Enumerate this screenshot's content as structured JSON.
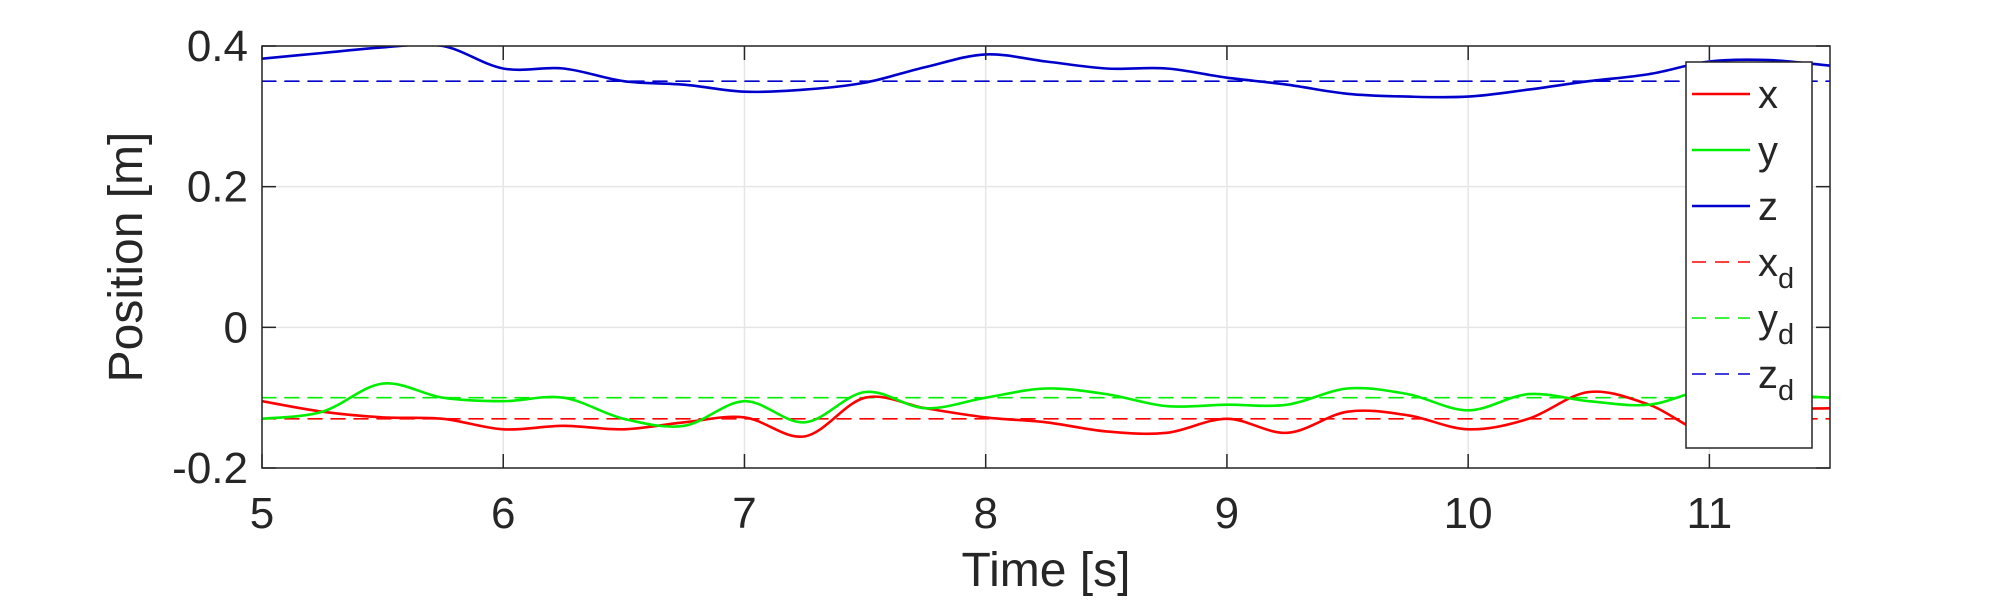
{
  "chart_data": {
    "type": "line",
    "xlabel": "Time [s]",
    "ylabel": "Position [m]",
    "xlim": [
      5,
      11.5
    ],
    "ylim": [
      -0.2,
      0.4
    ],
    "xticks": [
      5,
      6,
      7,
      8,
      9,
      10,
      11
    ],
    "yticks": [
      -0.2,
      0,
      0.2,
      0.4
    ],
    "xtick_labels": [
      "5",
      "6",
      "7",
      "8",
      "9",
      "10",
      "11"
    ],
    "ytick_labels": [
      "-0.2",
      "0",
      "0.2",
      "0.4"
    ],
    "grid": true,
    "legend_position": "right",
    "x": [
      5.0,
      5.25,
      5.5,
      5.75,
      6.0,
      6.25,
      6.5,
      6.75,
      7.0,
      7.25,
      7.5,
      7.75,
      8.0,
      8.25,
      8.5,
      8.75,
      9.0,
      9.25,
      9.5,
      9.75,
      10.0,
      10.25,
      10.5,
      10.75,
      11.0,
      11.25,
      11.5
    ],
    "series": [
      {
        "name": "x",
        "base": "x",
        "sub": "",
        "color": "#ff0000",
        "style": "solid",
        "values": [
          -0.105,
          -0.12,
          -0.128,
          -0.13,
          -0.145,
          -0.14,
          -0.145,
          -0.135,
          -0.128,
          -0.155,
          -0.1,
          -0.115,
          -0.128,
          -0.135,
          -0.148,
          -0.15,
          -0.13,
          -0.15,
          -0.12,
          -0.125,
          -0.145,
          -0.13,
          -0.092,
          -0.11,
          -0.15,
          -0.12,
          -0.115
        ]
      },
      {
        "name": "y",
        "base": "y",
        "sub": "",
        "color": "#00ee00",
        "style": "solid",
        "values": [
          -0.13,
          -0.12,
          -0.08,
          -0.1,
          -0.105,
          -0.1,
          -0.13,
          -0.14,
          -0.105,
          -0.135,
          -0.092,
          -0.115,
          -0.1,
          -0.087,
          -0.095,
          -0.112,
          -0.11,
          -0.11,
          -0.087,
          -0.095,
          -0.118,
          -0.095,
          -0.105,
          -0.11,
          -0.088,
          -0.095,
          -0.1
        ]
      },
      {
        "name": "z",
        "base": "z",
        "sub": "",
        "color": "#0000cc",
        "style": "solid",
        "values": [
          0.382,
          0.39,
          0.398,
          0.4,
          0.368,
          0.368,
          0.35,
          0.345,
          0.335,
          0.338,
          0.348,
          0.37,
          0.388,
          0.378,
          0.368,
          0.368,
          0.355,
          0.345,
          0.332,
          0.328,
          0.328,
          0.338,
          0.35,
          0.36,
          0.378,
          0.38,
          0.372
        ]
      },
      {
        "name": "xd",
        "base": "x",
        "sub": "d",
        "color": "#ff0000",
        "style": "dashed",
        "values": [
          -0.13,
          -0.13,
          -0.13,
          -0.13,
          -0.13,
          -0.13,
          -0.13,
          -0.13,
          -0.13,
          -0.13,
          -0.13,
          -0.13,
          -0.13,
          -0.13,
          -0.13,
          -0.13,
          -0.13,
          -0.13,
          -0.13,
          -0.13,
          -0.13,
          -0.13,
          -0.13,
          -0.13,
          -0.13,
          -0.13,
          -0.13
        ]
      },
      {
        "name": "yd",
        "base": "y",
        "sub": "d",
        "color": "#00ee00",
        "style": "dashed",
        "values": [
          -0.1,
          -0.1,
          -0.1,
          -0.1,
          -0.1,
          -0.1,
          -0.1,
          -0.1,
          -0.1,
          -0.1,
          -0.1,
          -0.1,
          -0.1,
          -0.1,
          -0.1,
          -0.1,
          -0.1,
          -0.1,
          -0.1,
          -0.1,
          -0.1,
          -0.1,
          -0.1,
          -0.1,
          -0.1,
          -0.1,
          -0.1
        ]
      },
      {
        "name": "zd",
        "base": "z",
        "sub": "d",
        "color": "#0000cc",
        "style": "dashed",
        "values": [
          0.35,
          0.35,
          0.35,
          0.35,
          0.35,
          0.35,
          0.35,
          0.35,
          0.35,
          0.35,
          0.35,
          0.35,
          0.35,
          0.35,
          0.35,
          0.35,
          0.35,
          0.35,
          0.35,
          0.35,
          0.35,
          0.35,
          0.35,
          0.35,
          0.35,
          0.35,
          0.35
        ]
      }
    ]
  }
}
